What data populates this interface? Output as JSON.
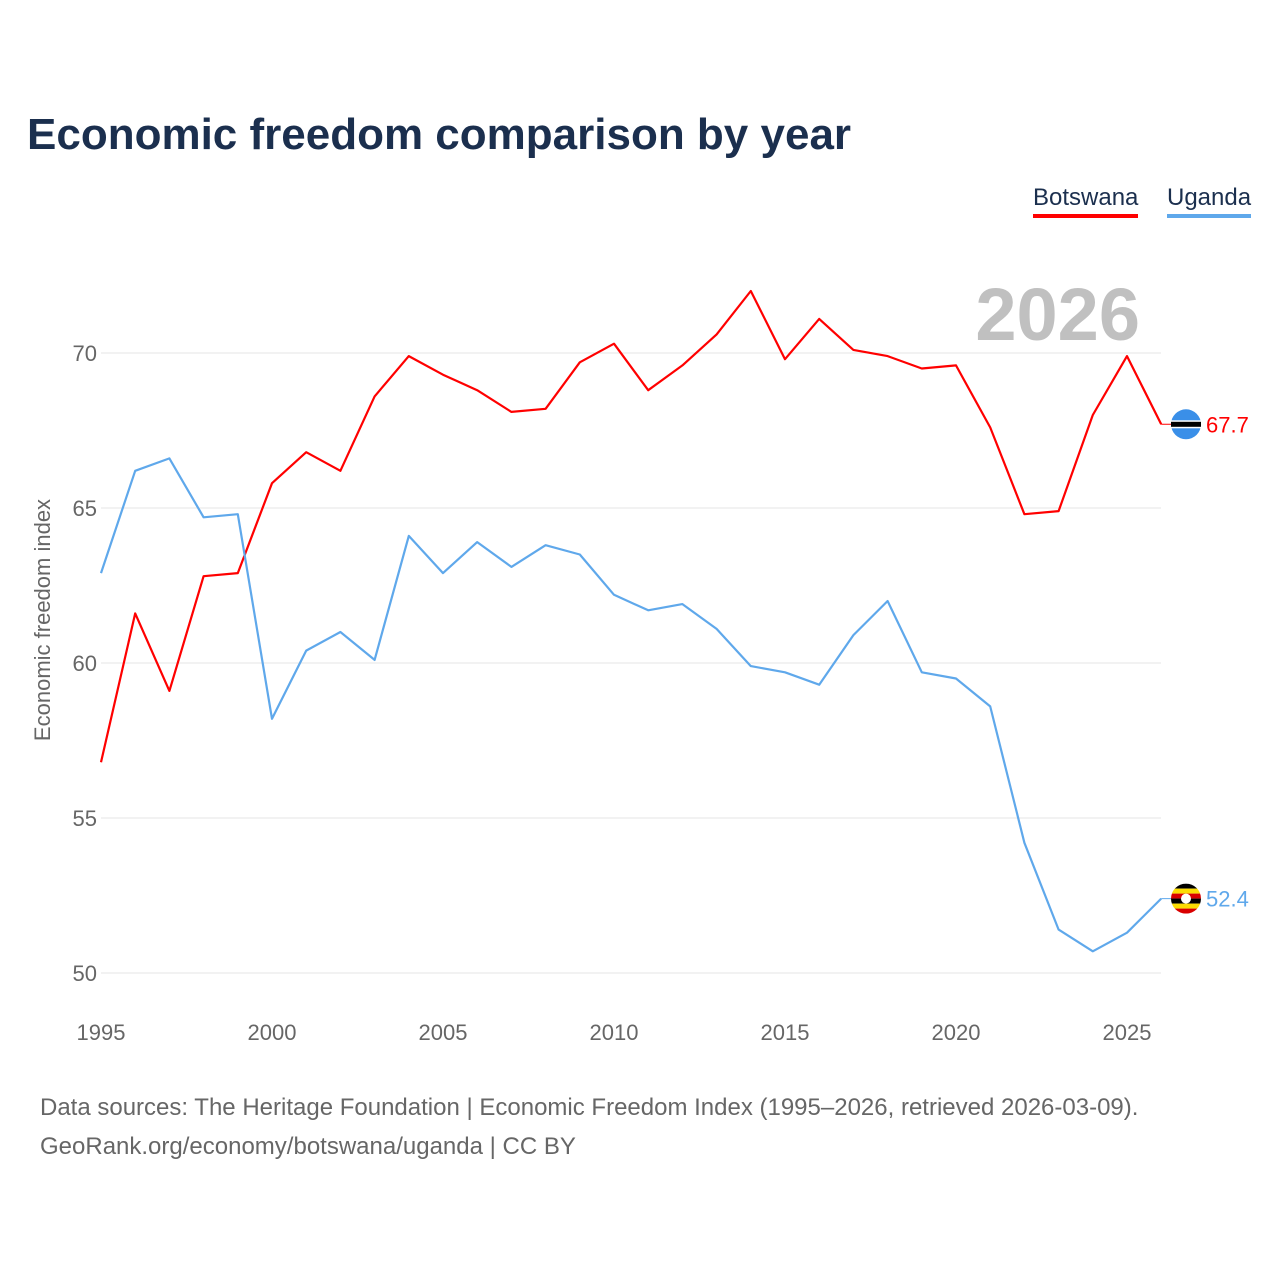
{
  "chart_data": {
    "type": "line",
    "title": "Economic freedom comparison by year",
    "xlabel": "",
    "ylabel": "Economic freedom index",
    "year_watermark": "2026",
    "xlim": [
      1995,
      2026
    ],
    "ylim": [
      50,
      72.5
    ],
    "x_ticks": [
      1995,
      2000,
      2005,
      2010,
      2015,
      2020,
      2025
    ],
    "y_ticks": [
      50,
      55,
      60,
      65,
      70
    ],
    "grid": true,
    "legend_position": "top-right",
    "x": [
      1995,
      1996,
      1997,
      1998,
      1999,
      2000,
      2001,
      2002,
      2003,
      2004,
      2005,
      2006,
      2007,
      2008,
      2009,
      2010,
      2011,
      2012,
      2013,
      2014,
      2015,
      2016,
      2017,
      2018,
      2019,
      2020,
      2021,
      2022,
      2023,
      2024,
      2025,
      2026
    ],
    "series": [
      {
        "name": "Botswana",
        "color": "#ff0000",
        "end_label": "67.7",
        "values": [
          56.8,
          61.6,
          59.1,
          62.8,
          62.9,
          65.8,
          66.8,
          66.2,
          68.6,
          69.9,
          69.3,
          68.8,
          68.1,
          68.2,
          69.7,
          70.3,
          68.8,
          69.6,
          70.6,
          72.0,
          69.8,
          71.1,
          70.1,
          69.9,
          69.5,
          69.6,
          67.6,
          64.8,
          64.9,
          68.0,
          69.9,
          67.7
        ]
      },
      {
        "name": "Uganda",
        "color": "#5fa8eb",
        "end_label": "52.4",
        "values": [
          62.9,
          66.2,
          66.6,
          64.7,
          64.8,
          58.2,
          60.4,
          61.0,
          60.1,
          64.1,
          62.9,
          63.9,
          63.1,
          63.8,
          63.5,
          62.2,
          61.7,
          61.9,
          61.1,
          59.9,
          59.7,
          59.3,
          60.9,
          62.0,
          59.7,
          59.5,
          58.6,
          54.2,
          51.4,
          50.7,
          51.3,
          52.4
        ]
      }
    ]
  },
  "footer": {
    "line1": "Data sources: The Heritage Foundation | Economic Freedom Index (1995–2026, retrieved 2026-03-09).",
    "line2": "GeoRank.org/economy/botswana/uganda | CC BY"
  }
}
